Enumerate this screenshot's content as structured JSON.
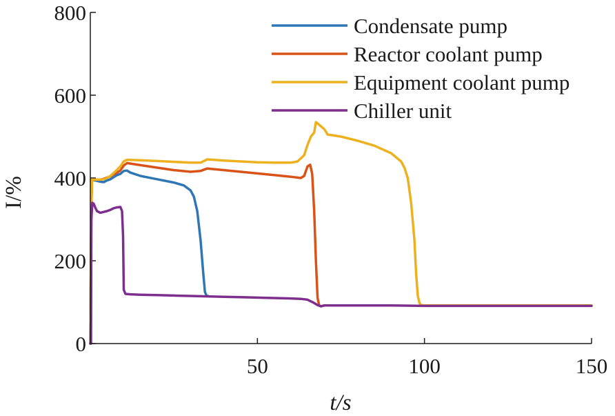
{
  "chart_data": {
    "type": "line",
    "title": "",
    "xlabel": "t/s",
    "ylabel": "I/%",
    "xlim": [
      0,
      150
    ],
    "ylim": [
      0,
      800
    ],
    "xticks": [
      50,
      100,
      150
    ],
    "yticks": [
      0,
      200,
      400,
      600,
      800
    ],
    "grid": false,
    "legend_position": "top-right",
    "series": [
      {
        "name": "Condensate pump",
        "color": "#2f77b4",
        "x": [
          0,
          0.3,
          0.5,
          1,
          2,
          3,
          4,
          5,
          6,
          7,
          8,
          9,
          10,
          11,
          12,
          15,
          20,
          25,
          28,
          30,
          31,
          32,
          33,
          33.8,
          34.3,
          34.8,
          35.2
        ],
        "y": [
          0,
          330,
          396,
          395,
          393,
          391,
          390,
          394,
          397,
          402,
          407,
          410,
          417,
          418,
          413,
          405,
          397,
          389,
          382,
          370,
          355,
          320,
          250,
          170,
          125,
          115,
          115
        ]
      },
      {
        "name": "Reactor coolant pump",
        "color": "#d95319",
        "x": [
          0,
          0.3,
          0.5,
          1,
          2,
          3,
          4,
          5,
          6,
          7,
          8,
          9,
          10,
          11,
          15,
          20,
          25,
          30,
          33,
          35,
          40,
          45,
          50,
          55,
          60,
          63,
          64,
          65,
          65.8,
          66.4,
          67,
          67.5,
          68,
          68.5,
          69,
          70
        ],
        "y": [
          0,
          330,
          396,
          396,
          396,
          396,
          398,
          401,
          404,
          409,
          413,
          418,
          430,
          436,
          431,
          425,
          419,
          415,
          417,
          423,
          419,
          415,
          411,
          407,
          403,
          400,
          405,
          428,
          432,
          410,
          320,
          200,
          110,
          92,
          90,
          92
        ]
      },
      {
        "name": "Equipment coolant pump",
        "color": "#edb120",
        "x": [
          0,
          0.3,
          0.5,
          1,
          2,
          3,
          4,
          5,
          6,
          7,
          8,
          9,
          10,
          11,
          15,
          20,
          25,
          30,
          33,
          35,
          40,
          45,
          50,
          55,
          60,
          62,
          64,
          65,
          66,
          67,
          67.5,
          68,
          69,
          70,
          70.5,
          71,
          75,
          80,
          85,
          90,
          93,
          94,
          95,
          96,
          97,
          97.5,
          98,
          98.5,
          99,
          100,
          110,
          120,
          130,
          140,
          150
        ],
        "y": [
          0,
          340,
          396,
          396,
          396,
          396,
          397,
          400,
          405,
          412,
          420,
          428,
          440,
          444,
          443,
          441,
          439,
          437,
          437,
          445,
          442,
          440,
          438,
          437,
          437,
          440,
          455,
          480,
          500,
          510,
          535,
          532,
          525,
          518,
          512,
          505,
          500,
          490,
          478,
          460,
          440,
          425,
          400,
          340,
          250,
          170,
          115,
          98,
          93,
          92,
          92,
          92,
          92,
          92,
          92
        ]
      },
      {
        "name": "Chiller unit",
        "color": "#7e2f8e",
        "x": [
          0,
          0.2,
          0.3,
          0.6,
          1,
          1.5,
          2,
          3,
          4,
          5,
          6,
          7,
          8,
          9,
          9.5,
          9.8,
          10,
          10.5,
          12,
          15,
          20,
          25,
          30,
          35,
          40,
          45,
          50,
          55,
          60,
          63,
          65,
          66,
          67,
          68,
          69,
          70,
          71,
          75,
          80,
          90,
          100,
          110,
          120,
          130,
          140,
          150
        ],
        "y": [
          0,
          0,
          300,
          340,
          338,
          328,
          320,
          316,
          318,
          320,
          323,
          327,
          329,
          330,
          320,
          260,
          130,
          120,
          119,
          118,
          117,
          116,
          115,
          114,
          113,
          112,
          111,
          110,
          109,
          108,
          106,
          102,
          98,
          93,
          90,
          92,
          92,
          92,
          92,
          92,
          91,
          91,
          91,
          91,
          91,
          91
        ]
      }
    ]
  }
}
